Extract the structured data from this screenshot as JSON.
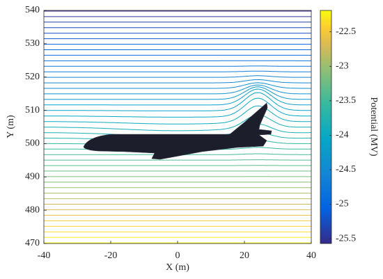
{
  "chart_data": {
    "type": "contour",
    "xlabel": "X (m)",
    "ylabel": "Y (m)",
    "colorbar_label": "Potential (MV)",
    "colormap": "parula",
    "xlim": [
      -40,
      40
    ],
    "xticks": [
      -40,
      -20,
      0,
      20,
      40
    ],
    "ylim": [
      470,
      540
    ],
    "yticks": [
      470,
      480,
      490,
      500,
      510,
      520,
      530,
      540
    ],
    "clim": [
      -25.57,
      -22.19
    ],
    "cticks": [
      -25.5,
      -25,
      -24.5,
      -24,
      -23.5,
      -23,
      -22.5
    ],
    "levels": [
      -25.56,
      -25.48,
      -25.4,
      -25.32,
      -25.24,
      -25.16,
      -25.08,
      -25,
      -24.92,
      -24.84,
      -24.76,
      -24.68,
      -24.6,
      -24.52,
      -24.44,
      -24.36,
      -24.28,
      -24.2,
      -24.12,
      -24.04,
      -23.96,
      -23.88,
      -23.8,
      -23.72,
      -23.64,
      -23.56,
      -23.48,
      -23.4,
      -23.32,
      -23.24,
      -23.16,
      -23.08,
      -23,
      -22.92,
      -22.84,
      -22.76,
      -22.68,
      -22.6,
      -22.52,
      -22.44,
      -22.36,
      -22.28,
      -22.2
    ]
  }
}
